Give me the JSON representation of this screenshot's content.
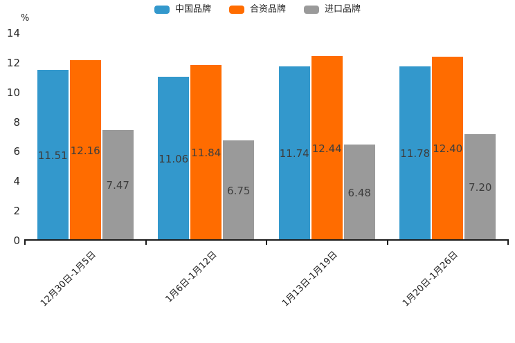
{
  "chart_data": {
    "type": "bar",
    "title": "",
    "ylabel": "%",
    "xlabel": "",
    "categories": [
      "12月30日-1月5日",
      "1月6日-1月12日",
      "1月13日-1月19日",
      "1月20日-1月26日"
    ],
    "series": [
      {
        "name": "中国品牌",
        "color": "#3398CC",
        "values": [
          11.51,
          11.06,
          11.74,
          11.78
        ],
        "labels": [
          "11.51",
          "11.06",
          "11.74",
          "11.78"
        ]
      },
      {
        "name": "合资品牌",
        "color": "#FF6C00",
        "values": [
          12.16,
          11.84,
          12.44,
          12.4
        ],
        "labels": [
          "12.16",
          "11.84",
          "12.44",
          "12.40"
        ]
      },
      {
        "name": "进口品牌",
        "color": "#9A9A9A",
        "values": [
          7.47,
          6.75,
          6.48,
          7.2
        ],
        "labels": [
          "7.47",
          "6.75",
          "6.48",
          "7.20"
        ]
      }
    ],
    "ylim": [
      0,
      14
    ],
    "yticks": [
      "0",
      "2",
      "4",
      "6",
      "8",
      "10",
      "12",
      "14"
    ],
    "grid": false,
    "legend_position": "top-center",
    "value_labels": "inside-center",
    "xtick_rotation": -45,
    "value_label_color": "#3d3d3d",
    "axis_color": "#1a1a1a"
  }
}
